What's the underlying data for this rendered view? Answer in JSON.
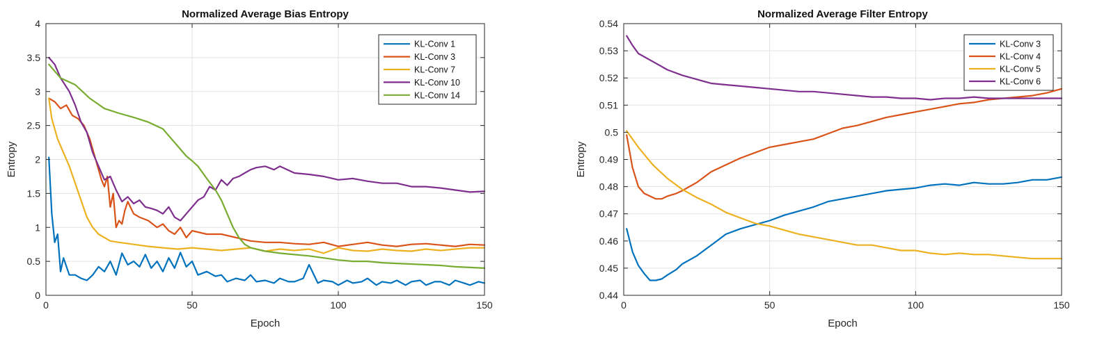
{
  "chart_data": [
    {
      "type": "line",
      "title": "Normalized Average Bias Entropy",
      "xlabel": "Epoch",
      "ylabel": "Entropy",
      "xlim": [
        0,
        150
      ],
      "ylim": [
        0,
        4
      ],
      "xticks": [
        0,
        50,
        100,
        150
      ],
      "yticks": [
        0,
        0.5,
        1,
        1.5,
        2,
        2.5,
        3,
        3.5,
        4
      ],
      "grid": true,
      "legend_position": "top-right",
      "series": [
        {
          "name": "KL-Conv 1",
          "color": "#0072BD",
          "x": [
            1,
            2,
            3,
            4,
            5,
            6,
            8,
            10,
            12,
            14,
            16,
            18,
            20,
            22,
            24,
            26,
            28,
            30,
            32,
            34,
            36,
            38,
            40,
            42,
            44,
            46,
            48,
            50,
            52,
            55,
            58,
            60,
            62,
            65,
            68,
            70,
            72,
            75,
            78,
            80,
            83,
            85,
            88,
            90,
            93,
            95,
            98,
            100,
            103,
            105,
            108,
            110,
            113,
            115,
            118,
            120,
            123,
            125,
            128,
            130,
            133,
            135,
            138,
            140,
            143,
            145,
            148,
            150
          ],
          "y": [
            2.03,
            1.2,
            0.78,
            0.9,
            0.35,
            0.55,
            0.3,
            0.3,
            0.25,
            0.22,
            0.3,
            0.42,
            0.35,
            0.5,
            0.3,
            0.62,
            0.45,
            0.5,
            0.42,
            0.6,
            0.4,
            0.5,
            0.35,
            0.55,
            0.4,
            0.63,
            0.42,
            0.5,
            0.3,
            0.35,
            0.28,
            0.3,
            0.2,
            0.25,
            0.22,
            0.3,
            0.2,
            0.22,
            0.18,
            0.25,
            0.2,
            0.2,
            0.25,
            0.45,
            0.18,
            0.22,
            0.2,
            0.15,
            0.22,
            0.18,
            0.2,
            0.25,
            0.15,
            0.2,
            0.18,
            0.22,
            0.15,
            0.2,
            0.22,
            0.15,
            0.2,
            0.2,
            0.15,
            0.22,
            0.18,
            0.15,
            0.2,
            0.18
          ]
        },
        {
          "name": "KL-Conv 3",
          "color": "#D95319",
          "x": [
            1,
            3,
            5,
            7,
            9,
            11,
            13,
            15,
            17,
            19,
            20,
            21,
            22,
            23,
            24,
            25,
            26,
            27,
            28,
            30,
            32,
            35,
            38,
            40,
            42,
            44,
            46,
            48,
            50,
            55,
            60,
            65,
            70,
            75,
            80,
            85,
            90,
            95,
            100,
            105,
            110,
            115,
            120,
            125,
            130,
            135,
            140,
            145,
            150
          ],
          "y": [
            2.9,
            2.85,
            2.75,
            2.8,
            2.65,
            2.6,
            2.5,
            2.3,
            2.0,
            1.7,
            1.6,
            1.75,
            1.3,
            1.5,
            1.0,
            1.1,
            1.05,
            1.25,
            1.38,
            1.2,
            1.15,
            1.1,
            1.0,
            1.05,
            0.95,
            0.9,
            1.0,
            0.85,
            0.95,
            0.9,
            0.9,
            0.85,
            0.8,
            0.78,
            0.78,
            0.76,
            0.75,
            0.78,
            0.72,
            0.75,
            0.78,
            0.74,
            0.72,
            0.75,
            0.76,
            0.74,
            0.72,
            0.75,
            0.74
          ]
        },
        {
          "name": "KL-Conv 7",
          "color": "#EDB120",
          "x": [
            1,
            2,
            4,
            6,
            8,
            10,
            12,
            14,
            16,
            18,
            20,
            22,
            25,
            30,
            35,
            40,
            45,
            50,
            55,
            60,
            65,
            70,
            75,
            80,
            85,
            90,
            95,
            100,
            105,
            110,
            115,
            120,
            125,
            130,
            135,
            140,
            145,
            150
          ],
          "y": [
            2.9,
            2.6,
            2.3,
            2.1,
            1.9,
            1.65,
            1.4,
            1.15,
            1.0,
            0.9,
            0.85,
            0.8,
            0.78,
            0.75,
            0.72,
            0.7,
            0.68,
            0.7,
            0.68,
            0.66,
            0.68,
            0.7,
            0.65,
            0.68,
            0.66,
            0.68,
            0.62,
            0.7,
            0.66,
            0.65,
            0.68,
            0.66,
            0.65,
            0.68,
            0.66,
            0.68,
            0.7,
            0.7
          ]
        },
        {
          "name": "KL-Conv 10",
          "color": "#7E2F8E",
          "x": [
            1,
            3,
            5,
            8,
            10,
            12,
            14,
            16,
            18,
            20,
            22,
            24,
            26,
            28,
            30,
            32,
            34,
            36,
            38,
            40,
            42,
            44,
            46,
            48,
            50,
            52,
            54,
            56,
            58,
            60,
            62,
            64,
            66,
            68,
            70,
            72,
            75,
            78,
            80,
            85,
            90,
            95,
            100,
            105,
            110,
            115,
            120,
            125,
            130,
            135,
            140,
            145,
            150
          ],
          "y": [
            3.5,
            3.4,
            3.2,
            3.0,
            2.8,
            2.55,
            2.4,
            2.1,
            1.9,
            1.7,
            1.75,
            1.55,
            1.38,
            1.45,
            1.35,
            1.4,
            1.3,
            1.28,
            1.25,
            1.2,
            1.3,
            1.15,
            1.1,
            1.2,
            1.3,
            1.4,
            1.45,
            1.6,
            1.55,
            1.7,
            1.62,
            1.72,
            1.75,
            1.8,
            1.85,
            1.88,
            1.9,
            1.85,
            1.9,
            1.8,
            1.78,
            1.75,
            1.7,
            1.72,
            1.68,
            1.65,
            1.65,
            1.6,
            1.6,
            1.58,
            1.55,
            1.52,
            1.53
          ]
        },
        {
          "name": "KL-Conv 14",
          "color": "#77AC30",
          "x": [
            1,
            5,
            10,
            15,
            20,
            25,
            30,
            35,
            40,
            42,
            45,
            48,
            50,
            52,
            55,
            58,
            60,
            62,
            64,
            66,
            68,
            70,
            75,
            80,
            85,
            90,
            95,
            100,
            105,
            110,
            115,
            120,
            125,
            130,
            135,
            140,
            145,
            150
          ],
          "y": [
            3.4,
            3.2,
            3.1,
            2.9,
            2.75,
            2.68,
            2.62,
            2.55,
            2.45,
            2.35,
            2.2,
            2.05,
            1.98,
            1.9,
            1.72,
            1.55,
            1.4,
            1.2,
            1.0,
            0.85,
            0.75,
            0.7,
            0.65,
            0.62,
            0.6,
            0.58,
            0.55,
            0.52,
            0.5,
            0.5,
            0.48,
            0.47,
            0.46,
            0.45,
            0.44,
            0.42,
            0.41,
            0.4
          ]
        }
      ]
    },
    {
      "type": "line",
      "title": "Normalized Average Filter Entropy",
      "xlabel": "Epoch",
      "ylabel": "Entropy",
      "xlim": [
        0,
        150
      ],
      "ylim": [
        0.44,
        0.54
      ],
      "xticks": [
        0,
        50,
        100,
        150
      ],
      "yticks": [
        0.44,
        0.45,
        0.46,
        0.47,
        0.48,
        0.49,
        0.5,
        0.51,
        0.52,
        0.53,
        0.54
      ],
      "grid": true,
      "legend_position": "top-right",
      "series": [
        {
          "name": "KL-Conv 3",
          "color": "#0072BD",
          "x": [
            1,
            3,
            5,
            7,
            9,
            11,
            13,
            15,
            18,
            20,
            25,
            30,
            35,
            40,
            45,
            50,
            55,
            60,
            65,
            70,
            75,
            80,
            85,
            90,
            95,
            100,
            105,
            110,
            115,
            120,
            125,
            130,
            135,
            140,
            145,
            150
          ],
          "y": [
            0.4645,
            0.456,
            0.451,
            0.448,
            0.4455,
            0.4455,
            0.446,
            0.4475,
            0.4495,
            0.4515,
            0.4545,
            0.4585,
            0.4625,
            0.4645,
            0.466,
            0.4675,
            0.4695,
            0.471,
            0.4725,
            0.4745,
            0.4755,
            0.4765,
            0.4775,
            0.4785,
            0.479,
            0.4795,
            0.4805,
            0.481,
            0.4805,
            0.4815,
            0.481,
            0.481,
            0.4815,
            0.4825,
            0.4825,
            0.4835
          ]
        },
        {
          "name": "KL-Conv 4",
          "color": "#D95319",
          "x": [
            1,
            3,
            5,
            7,
            9,
            11,
            13,
            15,
            18,
            20,
            25,
            30,
            35,
            40,
            45,
            50,
            55,
            60,
            65,
            70,
            75,
            80,
            85,
            90,
            95,
            100,
            105,
            110,
            115,
            120,
            125,
            130,
            135,
            140,
            145,
            150
          ],
          "y": [
            0.499,
            0.487,
            0.48,
            0.4775,
            0.4765,
            0.4755,
            0.4755,
            0.4765,
            0.4775,
            0.4785,
            0.4815,
            0.4855,
            0.488,
            0.4905,
            0.4925,
            0.4945,
            0.4955,
            0.4965,
            0.4975,
            0.4995,
            0.5015,
            0.5025,
            0.504,
            0.5055,
            0.5065,
            0.5075,
            0.5085,
            0.5095,
            0.5105,
            0.511,
            0.512,
            0.5125,
            0.513,
            0.5135,
            0.5145,
            0.516
          ]
        },
        {
          "name": "KL-Conv 5",
          "color": "#EDB120",
          "x": [
            1,
            5,
            10,
            15,
            20,
            25,
            30,
            35,
            40,
            45,
            50,
            55,
            60,
            65,
            70,
            75,
            80,
            85,
            90,
            95,
            100,
            105,
            110,
            115,
            120,
            125,
            130,
            135,
            140,
            145,
            150
          ],
          "y": [
            0.5005,
            0.4945,
            0.488,
            0.483,
            0.479,
            0.476,
            0.4735,
            0.4705,
            0.4685,
            0.4665,
            0.4655,
            0.464,
            0.4625,
            0.4615,
            0.4605,
            0.4595,
            0.4585,
            0.4585,
            0.4575,
            0.4565,
            0.4565,
            0.4555,
            0.455,
            0.4555,
            0.455,
            0.455,
            0.4545,
            0.454,
            0.4535,
            0.4535,
            0.4535
          ]
        },
        {
          "name": "KL-Conv 6",
          "color": "#7E2F8E",
          "x": [
            1,
            3,
            5,
            10,
            15,
            20,
            25,
            30,
            35,
            40,
            45,
            50,
            55,
            60,
            65,
            70,
            75,
            80,
            85,
            90,
            95,
            100,
            105,
            110,
            115,
            120,
            125,
            130,
            135,
            140,
            145,
            150
          ],
          "y": [
            0.5355,
            0.532,
            0.529,
            0.526,
            0.523,
            0.521,
            0.5195,
            0.518,
            0.5175,
            0.517,
            0.5165,
            0.516,
            0.5155,
            0.515,
            0.515,
            0.5145,
            0.514,
            0.5135,
            0.513,
            0.513,
            0.5125,
            0.5125,
            0.512,
            0.5125,
            0.5125,
            0.513,
            0.5125,
            0.5125,
            0.5125,
            0.5125,
            0.5125,
            0.5125
          ]
        }
      ]
    }
  ]
}
